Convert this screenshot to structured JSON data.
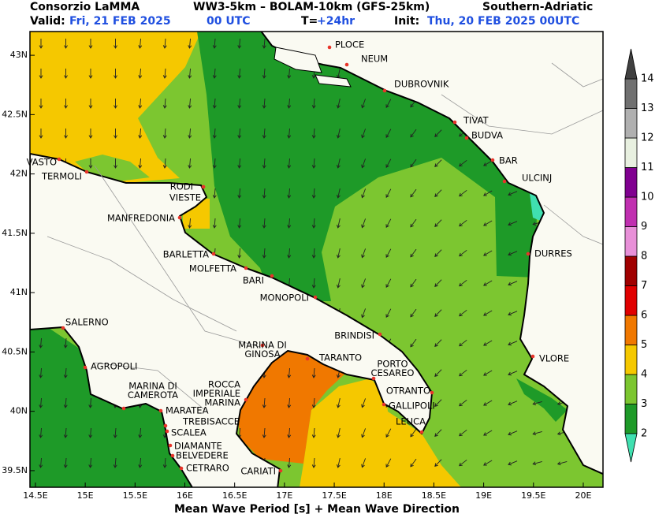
{
  "header": {
    "org": "Consorzio LaMMA",
    "model": "WW3-5km – BOLAM-10km (GFS-25km)",
    "region": "Southern-Adriatic",
    "valid_label": "Valid:",
    "valid_date": "Fri, 21 FEB 2025",
    "valid_hour": "00 UTC",
    "lead_label": "T=",
    "lead_value": "+24hr",
    "init_label": "Init:",
    "init_value": "Thu, 20 FEB 2025 00UTC"
  },
  "map": {
    "lon_range": [
      14.445,
      20.198
    ],
    "lat_range": [
      39.36,
      43.2
    ],
    "lon_ticks": [
      {
        "value": 14.5,
        "label": "14.5E"
      },
      {
        "value": 15,
        "label": "15E"
      },
      {
        "value": 15.5,
        "label": "15.5E"
      },
      {
        "value": 16,
        "label": "16E"
      },
      {
        "value": 16.5,
        "label": "16.5E"
      },
      {
        "value": 17,
        "label": "17E"
      },
      {
        "value": 17.5,
        "label": "17.5E"
      },
      {
        "value": 18,
        "label": "18E"
      },
      {
        "value": 18.5,
        "label": "18.5E"
      },
      {
        "value": 19,
        "label": "19E"
      },
      {
        "value": 19.5,
        "label": "19.5E"
      },
      {
        "value": 20,
        "label": "20E"
      }
    ],
    "lat_ticks": [
      {
        "value": 43,
        "label": "43N"
      },
      {
        "value": 42.5,
        "label": "42.5N"
      },
      {
        "value": 42,
        "label": "42N"
      },
      {
        "value": 41.5,
        "label": "41.5N"
      },
      {
        "value": 41,
        "label": "41N"
      },
      {
        "value": 40.5,
        "label": "40.5N"
      },
      {
        "value": 40,
        "label": "40N"
      },
      {
        "value": 39.5,
        "label": "39.5N"
      }
    ],
    "caption": "Mean Wave Period [s] + Mean Wave Direction"
  },
  "colorbar": {
    "ticks": [
      2,
      3,
      4,
      5,
      6,
      7,
      8,
      9,
      10,
      11,
      12,
      13,
      14
    ],
    "colors": [
      "#1e9a28",
      "#7cc630",
      "#f5c800",
      "#f07800",
      "#e00000",
      "#a00000",
      "#e890d8",
      "#c030b0",
      "#800090",
      "#e8f0e0",
      "#b0b0b0",
      "#707070"
    ],
    "low_color": "#40e0b0",
    "high_color": "#404040"
  },
  "cities": [
    {
      "lines": [
        "PLOCE"
      ]
    },
    {
      "lines": [
        "NEUM"
      ]
    },
    {
      "lines": [
        "DUBROVNIK"
      ]
    },
    {
      "lines": [
        "TIVAT"
      ]
    },
    {
      "lines": [
        "BUDVA"
      ]
    },
    {
      "lines": [
        "BAR"
      ]
    },
    {
      "lines": [
        "ULCINJ"
      ]
    },
    {
      "lines": [
        "DURRES"
      ]
    },
    {
      "lines": [
        "VLORE"
      ]
    },
    {
      "lines": [
        "VASTO"
      ]
    },
    {
      "lines": [
        "TERMOLI"
      ]
    },
    {
      "lines": [
        "RODI"
      ]
    },
    {
      "lines": [
        "VIESTE"
      ]
    },
    {
      "lines": [
        "MANFREDONIA"
      ]
    },
    {
      "lines": [
        "BARLETTA"
      ]
    },
    {
      "lines": [
        "MOLFETTA"
      ]
    },
    {
      "lines": [
        "BARI"
      ]
    },
    {
      "lines": [
        "MONOPOLI"
      ]
    },
    {
      "lines": [
        "BRINDISI"
      ]
    },
    {
      "lines": [
        "MARINA DI",
        "GINOSA"
      ]
    },
    {
      "lines": [
        "TARANTO"
      ]
    },
    {
      "lines": [
        "PORTO",
        "CESAREO"
      ]
    },
    {
      "lines": [
        "OTRANTO"
      ]
    },
    {
      "lines": [
        "GALLIPOLI"
      ]
    },
    {
      "lines": [
        "LEUCA"
      ]
    },
    {
      "lines": [
        "SALERNO"
      ]
    },
    {
      "lines": [
        "AGROPOLI"
      ]
    },
    {
      "lines": [
        "MARINA DI",
        "CAMEROTA"
      ]
    },
    {
      "lines": [
        "ROCCA",
        "IMPERIALE",
        "MARINA"
      ]
    },
    {
      "lines": [
        "MARATEA"
      ]
    },
    {
      "lines": [
        "TREBISACCE"
      ]
    },
    {
      "lines": [
        "SCALEA"
      ]
    },
    {
      "lines": [
        "DIAMANTE"
      ]
    },
    {
      "lines": [
        "BELVEDERE"
      ]
    },
    {
      "lines": [
        "CETRARO"
      ]
    },
    {
      "lines": [
        "CARIATI"
      ]
    }
  ]
}
